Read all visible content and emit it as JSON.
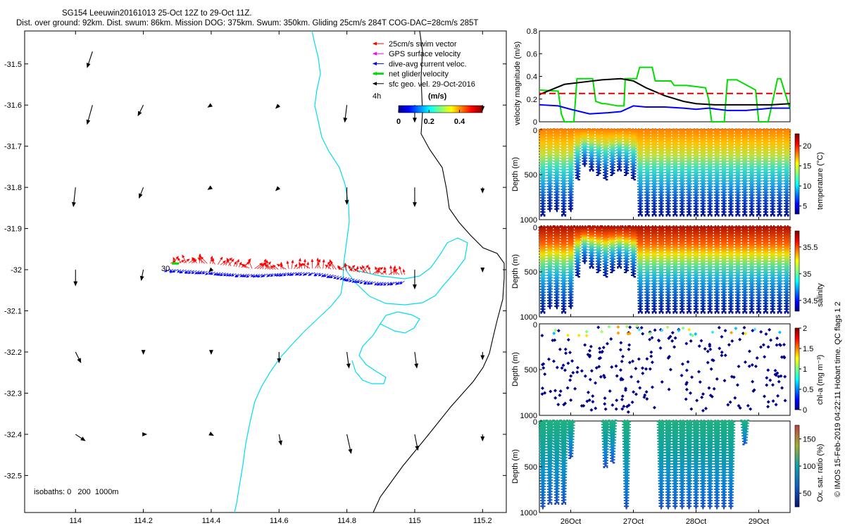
{
  "header": {
    "title": "SG154 Leeuwin20161013 25-Oct 12Z to 29-Oct 11Z.",
    "subtitle": "Dist. over ground: 92km. Dist. swum: 86km. Mission DOG: 375km. Swum: 350km. Gliding 25cm/s 284T COG-DAC=28cm/s 285T"
  },
  "credit": "© IMOS 15-Feb-2019 04:22:11 Hobart time. QC flags 1 2",
  "colors": {
    "swim": "#ff0000",
    "gps": "#ff00ff",
    "dac": "#0000ff",
    "net": "#00dd00",
    "sfc": "#000000",
    "isobath": "#00ddee",
    "coast": "#000000",
    "ref": "#dd0000"
  },
  "chart_data": [
    {
      "type": "scatter",
      "name": "track-map",
      "xlim": [
        113.85,
        115.27
      ],
      "ylim": [
        -32.59,
        -31.42
      ],
      "xticks": [
        114,
        114.2,
        114.4,
        114.6,
        114.8,
        115,
        115.2
      ],
      "xtick_labels": [
        "114",
        "114.2",
        "114.4",
        "114.6",
        "114.8",
        "115",
        "115.2"
      ],
      "yticks": [
        -31.5,
        -31.6,
        -31.7,
        -31.8,
        -31.9,
        -32,
        -32.1,
        -32.2,
        -32.3,
        -32.4,
        -32.5
      ],
      "ytick_labels": [
        "-31.5",
        "-31.6",
        "-31.7",
        "-31.8",
        "-31.9",
        "-32",
        "-32.1",
        "-32.2",
        "-32.3",
        "-32.4",
        "-32.5"
      ],
      "legend": {
        "entries": [
          {
            "label": "25cm/s swim vector",
            "color": "#ff0000",
            "style": "thin"
          },
          {
            "label": "GPS surface velocity",
            "color": "#ff00ff",
            "style": "thin"
          },
          {
            "label": "dive-avg current veloc.",
            "color": "#0000ff",
            "style": "thin"
          },
          {
            "label": "net glider velocity",
            "color": "#00dd00",
            "style": "thick"
          },
          {
            "label": "sfc geo. vel. 29-Oct-2016",
            "color": "#000000",
            "style": "thin"
          }
        ],
        "interval_label": "4h",
        "colorbar_unit": "(m/s)",
        "colorbar_ticks": [
          "0",
          "0.2",
          "0.4"
        ],
        "colorbar_range": [
          0,
          0.55
        ]
      },
      "isobaths_label": "isobaths: 0   200  1000m",
      "track_label": "30",
      "track": {
        "lon_start": 114.28,
        "lon_end": 114.97,
        "lat_start": -31.985,
        "lat_end": -32.01
      },
      "geo_vectors": [
        {
          "lon": 114.05,
          "lat": -31.47,
          "u": -0.05,
          "v": 0.15
        },
        {
          "lon": 114.05,
          "lat": -31.6,
          "u": -0.05,
          "v": 0.18
        },
        {
          "lon": 114.2,
          "lat": -31.6,
          "u": -0.05,
          "v": 0.1
        },
        {
          "lon": 114.4,
          "lat": -31.6,
          "u": -0.03,
          "v": 0.02
        },
        {
          "lon": 114.6,
          "lat": -31.6,
          "u": -0.03,
          "v": 0.03
        },
        {
          "lon": 114.8,
          "lat": -31.6,
          "u": -0.02,
          "v": 0.16
        },
        {
          "lon": 115.0,
          "lat": -31.6,
          "u": 0.0,
          "v": 0.16
        },
        {
          "lon": 115.2,
          "lat": -31.6,
          "u": 0.0,
          "v": 0.05
        },
        {
          "lon": 114.0,
          "lat": -31.8,
          "u": -0.02,
          "v": 0.18
        },
        {
          "lon": 114.2,
          "lat": -31.8,
          "u": -0.04,
          "v": 0.1
        },
        {
          "lon": 114.4,
          "lat": -31.8,
          "u": -0.03,
          "v": 0.02
        },
        {
          "lon": 114.6,
          "lat": -31.8,
          "u": -0.03,
          "v": 0.03
        },
        {
          "lon": 114.8,
          "lat": -31.8,
          "u": 0.0,
          "v": 0.16
        },
        {
          "lon": 115.0,
          "lat": -31.8,
          "u": 0.0,
          "v": 0.18
        },
        {
          "lon": 115.2,
          "lat": -31.8,
          "u": 0.0,
          "v": 0.05
        },
        {
          "lon": 114.0,
          "lat": -32.0,
          "u": 0.0,
          "v": 0.15
        },
        {
          "lon": 114.2,
          "lat": -32.0,
          "u": -0.02,
          "v": 0.1
        },
        {
          "lon": 114.4,
          "lat": -32.0,
          "u": -0.02,
          "v": 0.02
        },
        {
          "lon": 115.0,
          "lat": -32.0,
          "u": 0.0,
          "v": 0.18
        },
        {
          "lon": 115.2,
          "lat": -32.0,
          "u": 0.0,
          "v": 0.02
        },
        {
          "lon": 114.0,
          "lat": -32.2,
          "u": 0.05,
          "v": 0.1
        },
        {
          "lon": 114.2,
          "lat": -32.2,
          "u": 0.0,
          "v": 0.02
        },
        {
          "lon": 114.4,
          "lat": -32.2,
          "u": 0.0,
          "v": 0.02
        },
        {
          "lon": 114.6,
          "lat": -32.2,
          "u": 0.0,
          "v": 0.1
        },
        {
          "lon": 114.8,
          "lat": -32.2,
          "u": 0.02,
          "v": 0.15
        },
        {
          "lon": 115.0,
          "lat": -32.2,
          "u": 0.02,
          "v": 0.15
        },
        {
          "lon": 115.2,
          "lat": -32.2,
          "u": 0.0,
          "v": 0.07
        },
        {
          "lon": 114.0,
          "lat": -32.4,
          "u": 0.09,
          "v": 0.06
        },
        {
          "lon": 114.2,
          "lat": -32.4,
          "u": 0.03,
          "v": 0.0
        },
        {
          "lon": 114.4,
          "lat": -32.4,
          "u": 0.02,
          "v": 0.01
        },
        {
          "lon": 114.6,
          "lat": -32.4,
          "u": 0.02,
          "v": 0.1
        },
        {
          "lon": 114.8,
          "lat": -32.4,
          "u": 0.04,
          "v": 0.18
        },
        {
          "lon": 115.0,
          "lat": -32.4,
          "u": 0.03,
          "v": 0.15
        },
        {
          "lon": 115.2,
          "lat": -32.4,
          "u": 0.0,
          "v": 0.06
        }
      ]
    },
    {
      "type": "line",
      "name": "velocity-magnitude",
      "ylabel": "velocity magnitude (m/s)",
      "ylim": [
        0,
        0.8
      ],
      "yticks": [
        "0",
        "0.2",
        "0.4",
        "0.6",
        "0.8"
      ],
      "xlim": [
        25.5,
        29.5
      ],
      "reference_line": 0.25,
      "series": [
        {
          "name": "net glider velocity",
          "color": "#00dd00",
          "x": [
            25.5,
            25.8,
            25.85,
            25.9,
            26.05,
            26.1,
            26.35,
            26.4,
            26.5,
            26.55,
            26.75,
            26.85,
            26.87,
            27.05,
            27.1,
            27.15,
            27.3,
            27.35,
            27.6,
            27.65,
            27.85,
            28.15,
            28.2,
            28.25,
            28.45,
            28.5,
            28.65,
            28.95,
            29.0,
            29.05,
            29.15,
            29.3,
            29.35,
            29.5
          ],
          "y": [
            0.28,
            0.27,
            0.07,
            0.0,
            0.0,
            0.38,
            0.38,
            0.18,
            0.16,
            0.16,
            0.14,
            0.14,
            0.38,
            0.38,
            0.48,
            0.48,
            0.48,
            0.36,
            0.36,
            0.32,
            0.32,
            0.3,
            0.2,
            0.0,
            0.0,
            0.37,
            0.37,
            0.28,
            0.0,
            0.0,
            0.0,
            0.38,
            0.38,
            0.11
          ]
        },
        {
          "name": "sfc geo. vel.",
          "color": "#000000",
          "x": [
            25.5,
            25.9,
            26.2,
            26.5,
            26.8,
            27.0,
            27.2,
            27.5,
            27.8,
            28.0,
            28.3,
            28.6,
            28.9,
            29.2,
            29.5
          ],
          "y": [
            0.24,
            0.33,
            0.35,
            0.37,
            0.38,
            0.36,
            0.3,
            0.23,
            0.18,
            0.16,
            0.15,
            0.15,
            0.15,
            0.15,
            0.16
          ]
        },
        {
          "name": "dive-avg current veloc.",
          "color": "#0000ff",
          "x": [
            25.5,
            25.8,
            26.0,
            26.3,
            26.6,
            26.8,
            27.0,
            27.2,
            27.5,
            27.8,
            28.0,
            28.2,
            28.5,
            28.8,
            29.0,
            29.2,
            29.5
          ],
          "y": [
            0.15,
            0.14,
            0.11,
            0.07,
            0.08,
            0.09,
            0.14,
            0.13,
            0.13,
            0.12,
            0.11,
            0.12,
            0.1,
            0.1,
            0.11,
            0.12,
            0.12
          ]
        }
      ]
    },
    {
      "type": "heatmap",
      "name": "temperature-section",
      "ylabel": "Depth (m)",
      "yticks": [
        "0",
        "500",
        "1000"
      ],
      "ylim": [
        0,
        1000
      ],
      "colorbar_label": "temperature (°C)",
      "colorbar_ticks": [
        "5",
        "10",
        "15",
        "20"
      ],
      "colorbar_range": [
        3,
        23
      ],
      "surface_value": 21,
      "bottom_value": 4,
      "dives": [
        0.95,
        0.9,
        0.9,
        0.95,
        0.9,
        0.55,
        0.4,
        0.45,
        0.5,
        0.55,
        0.5,
        0.45,
        0.5,
        0.55,
        0.95,
        0.95,
        0.95,
        0.95,
        0.95,
        0.95,
        0.95,
        0.95,
        0.95,
        0.95,
        0.95,
        0.95,
        0.95,
        0.95,
        0.95,
        0.95,
        0.95,
        0.95,
        0.95,
        0.95,
        0.95,
        0.95
      ]
    },
    {
      "type": "heatmap",
      "name": "salinity-section",
      "ylabel": "Depth (m)",
      "yticks": [
        "0",
        "500",
        "1000"
      ],
      "ylim": [
        0,
        1000
      ],
      "colorbar_label": "salinity",
      "colorbar_ticks": [
        "34.5",
        "35",
        "35.5"
      ],
      "colorbar_range": [
        34.3,
        35.8
      ],
      "surface_value": 35.7,
      "bottom_value": 34.4,
      "dives": [
        0.95,
        0.9,
        0.9,
        0.95,
        0.9,
        0.55,
        0.4,
        0.45,
        0.5,
        0.55,
        0.5,
        0.45,
        0.5,
        0.55,
        0.95,
        0.95,
        0.95,
        0.95,
        0.95,
        0.95,
        0.95,
        0.95,
        0.95,
        0.95,
        0.95,
        0.95,
        0.95,
        0.95,
        0.95,
        0.95,
        0.95,
        0.95,
        0.95,
        0.95,
        0.95,
        0.95
      ]
    },
    {
      "type": "scatter",
      "name": "chlorophyll-section",
      "ylabel": "Depth (m)",
      "yticks": [
        "0",
        "500",
        "1000"
      ],
      "ylim": [
        0,
        1000
      ],
      "colorbar_label": "chl-a (mg m⁻³)",
      "colorbar_ticks": [
        "0",
        "0.5",
        "1",
        "1.5",
        "2"
      ],
      "colorbar_range": [
        0,
        2
      ],
      "dominant_value": 0.05
    },
    {
      "type": "heatmap",
      "name": "oxygen-section",
      "ylabel": "Depth (m)",
      "yticks": [
        "0",
        "500",
        "1000"
      ],
      "ylim": [
        0,
        1000
      ],
      "colorbar_label": "Ox. sat. ratio (%)",
      "colorbar_ticks": [
        "50",
        "100",
        "150"
      ],
      "colorbar_range": [
        25,
        175
      ],
      "surface_value": 85,
      "bottom_value": 45,
      "xticks": [
        "26Oct",
        "27Oct",
        "28Oct",
        "29Oct"
      ],
      "xtick_days": [
        26,
        27,
        28,
        29
      ],
      "dives": [
        0.95,
        0.9,
        0.9,
        0.9,
        0.4,
        0,
        0,
        0,
        0,
        0.5,
        0.45,
        0,
        0.95,
        0,
        0,
        0,
        0,
        0.95,
        0.95,
        0.95,
        0.95,
        0.95,
        0.95,
        0.95,
        0.95,
        0.95,
        0.95,
        0.95,
        0,
        0.25,
        0,
        0,
        0,
        0,
        0,
        0
      ]
    }
  ]
}
